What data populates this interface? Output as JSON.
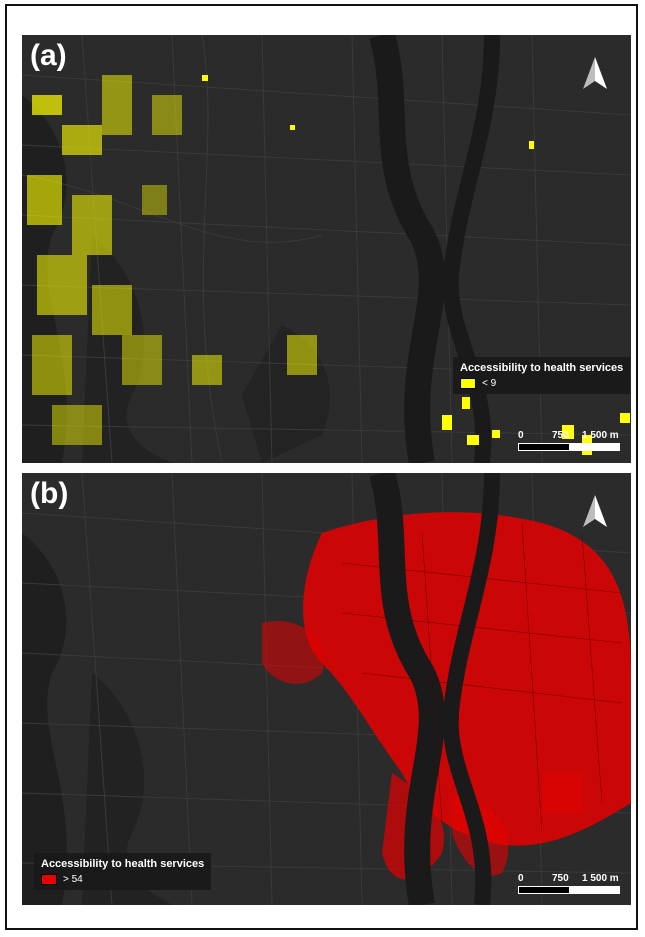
{
  "panels": [
    {
      "label": "(a)",
      "legend": {
        "title": "Accessibility to health services",
        "item": "< 9",
        "color": "#ffff00"
      },
      "scale": {
        "ticks": [
          "0",
          "750",
          "1 500 m"
        ]
      },
      "north_icon": "north-arrow-icon"
    },
    {
      "label": "(b)",
      "legend": {
        "title": "Accessibility to health services",
        "item": "> 54",
        "color": "#e60000"
      },
      "scale": {
        "ticks": [
          "0",
          "750",
          "1 500 m"
        ]
      },
      "north_icon": "north-arrow-icon"
    }
  ],
  "colors": {
    "background": "#2a2a2a",
    "river": "#1c1c1c",
    "roads": "#3b3b3b",
    "yellow": "#ffff00",
    "red": "#e60000"
  }
}
